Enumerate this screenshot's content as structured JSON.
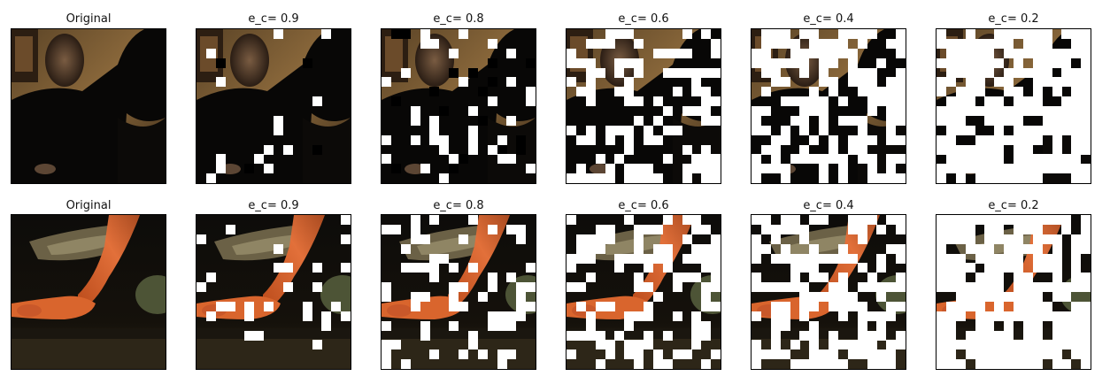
{
  "rows": [
    {
      "panels": [
        {
          "title": "Original",
          "kind": "original"
        },
        {
          "title": "e_c= 0.9",
          "kind": "masked",
          "keep": 0.9
        },
        {
          "title": "e_c= 0.8",
          "kind": "masked",
          "keep": 0.8
        },
        {
          "title": "e_c= 0.6",
          "kind": "masked",
          "keep": 0.6
        },
        {
          "title": "e_c= 0.4",
          "kind": "masked",
          "keep": 0.4
        },
        {
          "title": "e_c= 0.2",
          "kind": "masked",
          "keep": 0.2
        }
      ]
    },
    {
      "panels": [
        {
          "title": "Original",
          "kind": "original"
        },
        {
          "title": "e_c= 0.9",
          "kind": "masked",
          "keep": 0.9
        },
        {
          "title": "e_c= 0.8",
          "kind": "masked",
          "keep": 0.8
        },
        {
          "title": "e_c= 0.6",
          "kind": "masked",
          "keep": 0.6
        },
        {
          "title": "e_c= 0.4",
          "kind": "masked",
          "keep": 0.4
        },
        {
          "title": "e_c= 0.2",
          "kind": "masked",
          "keep": 0.2
        }
      ]
    }
  ]
}
